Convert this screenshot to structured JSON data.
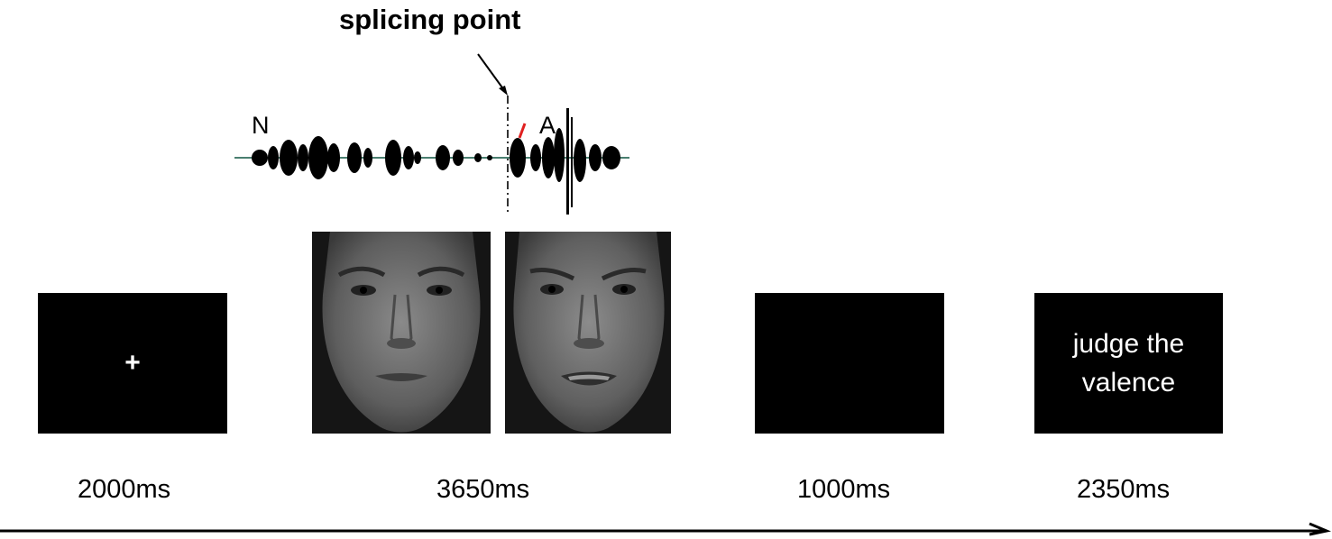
{
  "annotation": {
    "splicing_label": "splicing point",
    "segment_left": "N",
    "segment_right": "A"
  },
  "screens": {
    "fixation_symbol": "+",
    "judge_line1": "judge the",
    "judge_line2": "valence"
  },
  "durations": {
    "fixation": "2000ms",
    "stimulus": "3650ms",
    "blank": "1000ms",
    "response": "2350ms"
  },
  "colors": {
    "screen": "#000000",
    "marker": "#e02020",
    "waveform": "#000000",
    "baseline": "#4a7f70"
  },
  "icons": [
    "waveform-icon",
    "neutral-face-icon",
    "angry-face-icon",
    "arrow-right-icon"
  ]
}
